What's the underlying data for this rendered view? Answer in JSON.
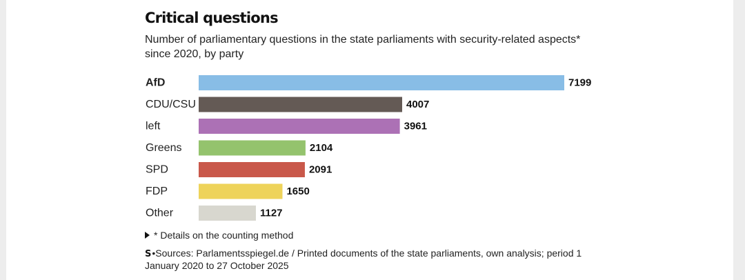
{
  "chart_data": {
    "type": "bar",
    "orientation": "horizontal",
    "title": "Critical questions",
    "subtitle_lines": [
      "Number of parliamentary questions in the state parliaments with security-related aspects*",
      "since 2020, by party"
    ],
    "categories": [
      "AfD",
      "CDU/CSU",
      "left",
      "Greens",
      "SPD",
      "FDP",
      "Other"
    ],
    "values": [
      7199,
      4007,
      3961,
      2104,
      2091,
      1650,
      1127
    ],
    "value_labels": [
      "7199",
      "4007",
      "3961",
      "2104",
      "2091",
      "1650",
      "1127"
    ],
    "colors": [
      "#88bde6",
      "#645a55",
      "#ac71b5",
      "#94c36d",
      "#c9584a",
      "#eed35a",
      "#d8d7cf"
    ],
    "highlight_category": "AfD",
    "xlim": [
      0,
      7199
    ],
    "xlabel": "",
    "ylabel": ""
  },
  "footnote": {
    "label": "* Details on the counting method"
  },
  "source": {
    "logo": "S",
    "lines": [
      "Sources: Parlamentsspiegel.de / Printed documents of the state parliaments, own analysis; period 1",
      "January 2020 to 27 October 2025"
    ]
  }
}
